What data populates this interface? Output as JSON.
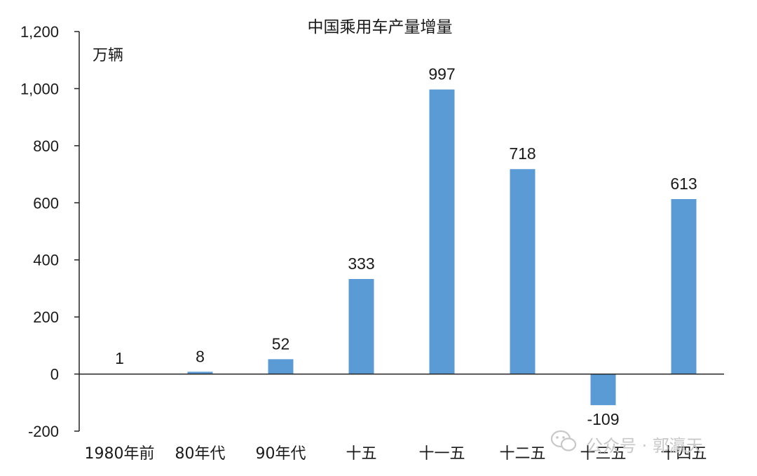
{
  "chart_data": {
    "type": "bar",
    "title": "中国乘用车产量增量",
    "unit": "万辆",
    "categories": [
      "1980年前",
      "80年代",
      "90年代",
      "十五",
      "十一五",
      "十二五",
      "十三五",
      "十四五"
    ],
    "values": [
      1,
      8,
      52,
      333,
      997,
      718,
      -109,
      613
    ],
    "data_labels": [
      "1",
      "8",
      "52",
      "333",
      "997",
      "718",
      "-109",
      "613"
    ],
    "ylim": [
      -200,
      1200
    ],
    "yticks": [
      -200,
      0,
      200,
      400,
      600,
      800,
      1000,
      1200
    ],
    "ytick_labels": [
      "-200",
      "0",
      "200",
      "400",
      "600",
      "800",
      "1,000",
      "1,200"
    ],
    "bar_color": "#5B9BD5",
    "grid": false,
    "legend": "none"
  },
  "watermark": {
    "text": "公众号 · 郭瀛天",
    "icon": "wechat-icon"
  }
}
